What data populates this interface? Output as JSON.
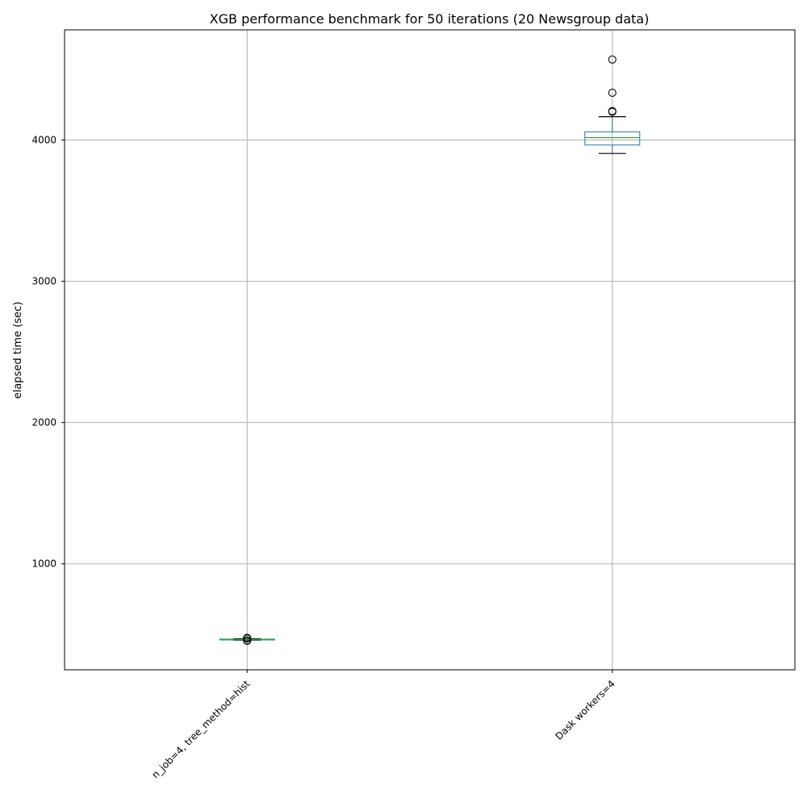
{
  "chart_data": {
    "type": "boxplot",
    "title": "XGB performance benchmark for 50 iterations (20 Newsgroup data)",
    "xlabel": "",
    "ylabel": "elapsed time (sec)",
    "ylim": [
      250,
      4780
    ],
    "yticks": [
      1000,
      2000,
      3000,
      4000
    ],
    "grid": true,
    "categories": [
      "n_job=4, tree_method=hist",
      "Dask workers=4"
    ],
    "boxes": [
      {
        "whisker_low": 460,
        "q1": 463,
        "median": 465,
        "q3": 467,
        "whisker_high": 470,
        "outliers": [
          455,
          458,
          472,
          476
        ]
      },
      {
        "whisker_low": 3905,
        "q1": 3965,
        "median": 4017,
        "q3": 4058,
        "whisker_high": 4165,
        "outliers": [
          4200,
          4205,
          4335,
          4570
        ]
      }
    ],
    "colors": {
      "box": "#1f77b4",
      "median": "#2ca02c",
      "whisker": "#000000",
      "grid": "#b0b0b0"
    }
  }
}
